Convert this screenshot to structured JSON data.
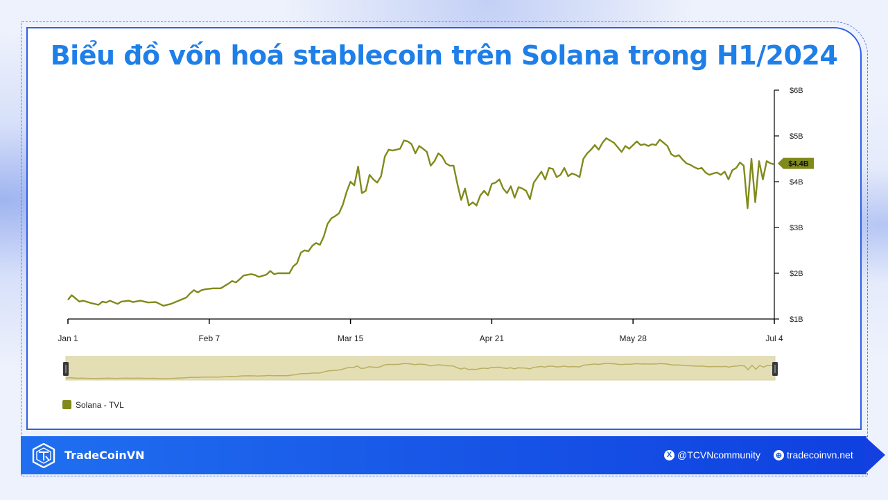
{
  "title": "Biểu đồ vốn hoá stablecoin trên Solana trong H1/2024",
  "chart_data": {
    "type": "line",
    "title": "Biểu đồ vốn hoá stablecoin trên Solana trong H1/2024",
    "x_tick_labels": [
      "Jan 1",
      "Feb 7",
      "Mar 15",
      "Apr 21",
      "May 28",
      "Jul 4"
    ],
    "y_tick_labels": [
      "$6B",
      "$5B",
      "$4B",
      "$3B",
      "$2B",
      "$1B"
    ],
    "ylim": [
      1,
      6
    ],
    "y_unit": "B USD",
    "current_value_label": "$4.4B",
    "current_value": 4.4,
    "legend_position": "bottom-left",
    "grid": false,
    "series": [
      {
        "name": "Solana - TVL",
        "color": "#808a1a",
        "points": [
          [
            "Jan 1",
            1.42
          ],
          [
            "Jan 2",
            1.52
          ],
          [
            "Jan 3",
            1.45
          ],
          [
            "Jan 4",
            1.38
          ],
          [
            "Jan 5",
            1.4
          ],
          [
            "Jan 7",
            1.35
          ],
          [
            "Jan 9",
            1.31
          ],
          [
            "Jan 10",
            1.38
          ],
          [
            "Jan 11",
            1.36
          ],
          [
            "Jan 12",
            1.4
          ],
          [
            "Jan 14",
            1.33
          ],
          [
            "Jan 15",
            1.38
          ],
          [
            "Jan 17",
            1.4
          ],
          [
            "Jan 18",
            1.37
          ],
          [
            "Jan 20",
            1.4
          ],
          [
            "Jan 22",
            1.36
          ],
          [
            "Jan 24",
            1.37
          ],
          [
            "Jan 25",
            1.33
          ],
          [
            "Jan 26",
            1.29
          ],
          [
            "Jan 28",
            1.33
          ],
          [
            "Jan 30",
            1.4
          ],
          [
            "Feb 1",
            1.47
          ],
          [
            "Feb 2",
            1.56
          ],
          [
            "Feb 3",
            1.63
          ],
          [
            "Feb 4",
            1.58
          ],
          [
            "Feb 5",
            1.63
          ],
          [
            "Feb 6",
            1.65
          ],
          [
            "Feb 8",
            1.67
          ],
          [
            "Feb 10",
            1.67
          ],
          [
            "Feb 12",
            1.77
          ],
          [
            "Feb 13",
            1.83
          ],
          [
            "Feb 14",
            1.8
          ],
          [
            "Feb 15",
            1.87
          ],
          [
            "Feb 16",
            1.95
          ],
          [
            "Feb 18",
            1.98
          ],
          [
            "Feb 19",
            1.96
          ],
          [
            "Feb 20",
            1.92
          ],
          [
            "Feb 22",
            1.97
          ],
          [
            "Feb 23",
            2.05
          ],
          [
            "Feb 24",
            1.98
          ],
          [
            "Feb 25",
            2.0
          ],
          [
            "Feb 27",
            2.0
          ],
          [
            "Feb 28",
            2.0
          ],
          [
            "Feb 29",
            2.15
          ],
          [
            "Mar 1",
            2.22
          ],
          [
            "Mar 2",
            2.45
          ],
          [
            "Mar 3",
            2.5
          ],
          [
            "Mar 4",
            2.48
          ],
          [
            "Mar 5",
            2.6
          ],
          [
            "Mar 6",
            2.66
          ],
          [
            "Mar 7",
            2.62
          ],
          [
            "Mar 8",
            2.8
          ],
          [
            "Mar 9",
            3.08
          ],
          [
            "Mar 10",
            3.2
          ],
          [
            "Mar 11",
            3.25
          ],
          [
            "Mar 12",
            3.31
          ],
          [
            "Mar 13",
            3.5
          ],
          [
            "Mar 14",
            3.78
          ],
          [
            "Mar 15",
            4.0
          ],
          [
            "Mar 16",
            3.92
          ],
          [
            "Mar 17",
            4.33
          ],
          [
            "Mar 18",
            3.75
          ],
          [
            "Mar 19",
            3.8
          ],
          [
            "Mar 20",
            4.15
          ],
          [
            "Mar 21",
            4.05
          ],
          [
            "Mar 22",
            3.98
          ],
          [
            "Mar 23",
            4.12
          ],
          [
            "Mar 24",
            4.55
          ],
          [
            "Mar 25",
            4.7
          ],
          [
            "Mar 26",
            4.68
          ],
          [
            "Mar 27",
            4.7
          ],
          [
            "Mar 28",
            4.72
          ],
          [
            "Mar 29",
            4.9
          ],
          [
            "Mar 30",
            4.88
          ],
          [
            "Mar 31",
            4.82
          ],
          [
            "Apr 1",
            4.62
          ],
          [
            "Apr 2",
            4.78
          ],
          [
            "Apr 3",
            4.72
          ],
          [
            "Apr 4",
            4.65
          ],
          [
            "Apr 5",
            4.35
          ],
          [
            "Apr 6",
            4.45
          ],
          [
            "Apr 7",
            4.62
          ],
          [
            "Apr 8",
            4.55
          ],
          [
            "Apr 9",
            4.4
          ],
          [
            "Apr 10",
            4.35
          ],
          [
            "Apr 11",
            4.35
          ],
          [
            "Apr 12",
            3.95
          ],
          [
            "Apr 13",
            3.6
          ],
          [
            "Apr 14",
            3.85
          ],
          [
            "Apr 15",
            3.48
          ],
          [
            "Apr 16",
            3.55
          ],
          [
            "Apr 17",
            3.48
          ],
          [
            "Apr 18",
            3.7
          ],
          [
            "Apr 19",
            3.8
          ],
          [
            "Apr 20",
            3.7
          ],
          [
            "Apr 21",
            3.95
          ],
          [
            "Apr 22",
            3.98
          ],
          [
            "Apr 23",
            4.05
          ],
          [
            "Apr 24",
            3.85
          ],
          [
            "Apr 25",
            3.75
          ],
          [
            "Apr 26",
            3.9
          ],
          [
            "Apr 27",
            3.65
          ],
          [
            "Apr 28",
            3.88
          ],
          [
            "Apr 29",
            3.85
          ],
          [
            "Apr 30",
            3.8
          ],
          [
            "May 1",
            3.62
          ],
          [
            "May 2",
            3.98
          ],
          [
            "May 3",
            4.1
          ],
          [
            "May 4",
            4.22
          ],
          [
            "May 5",
            4.05
          ],
          [
            "May 6",
            4.3
          ],
          [
            "May 7",
            4.28
          ],
          [
            "May 8",
            4.1
          ],
          [
            "May 9",
            4.15
          ],
          [
            "May 10",
            4.3
          ],
          [
            "May 11",
            4.12
          ],
          [
            "May 12",
            4.18
          ],
          [
            "May 13",
            4.15
          ],
          [
            "May 14",
            4.1
          ],
          [
            "May 15",
            4.5
          ],
          [
            "May 16",
            4.62
          ],
          [
            "May 17",
            4.7
          ],
          [
            "May 18",
            4.8
          ],
          [
            "May 19",
            4.7
          ],
          [
            "May 20",
            4.85
          ],
          [
            "May 21",
            4.95
          ],
          [
            "May 22",
            4.9
          ],
          [
            "May 23",
            4.85
          ],
          [
            "May 24",
            4.75
          ],
          [
            "May 25",
            4.65
          ],
          [
            "May 26",
            4.78
          ],
          [
            "May 27",
            4.72
          ],
          [
            "May 28",
            4.8
          ],
          [
            "May 29",
            4.88
          ],
          [
            "May 30",
            4.8
          ],
          [
            "May 31",
            4.82
          ],
          [
            "Jun 1",
            4.78
          ],
          [
            "Jun 2",
            4.82
          ],
          [
            "Jun 3",
            4.8
          ],
          [
            "Jun 4",
            4.92
          ],
          [
            "Jun 5",
            4.85
          ],
          [
            "Jun 6",
            4.78
          ],
          [
            "Jun 7",
            4.6
          ],
          [
            "Jun 8",
            4.55
          ],
          [
            "Jun 9",
            4.58
          ],
          [
            "Jun 10",
            4.48
          ],
          [
            "Jun 11",
            4.4
          ],
          [
            "Jun 12",
            4.37
          ],
          [
            "Jun 13",
            4.32
          ],
          [
            "Jun 14",
            4.28
          ],
          [
            "Jun 15",
            4.3
          ],
          [
            "Jun 16",
            4.2
          ],
          [
            "Jun 17",
            4.15
          ],
          [
            "Jun 18",
            4.18
          ],
          [
            "Jun 19",
            4.2
          ],
          [
            "Jun 20",
            4.15
          ],
          [
            "Jun 21",
            4.22
          ],
          [
            "Jun 22",
            4.05
          ],
          [
            "Jun 23",
            4.25
          ],
          [
            "Jun 24",
            4.3
          ],
          [
            "Jun 25",
            4.42
          ],
          [
            "Jun 26",
            4.35
          ],
          [
            "Jun 27",
            3.42
          ],
          [
            "Jun 28",
            4.5
          ],
          [
            "Jun 29",
            3.55
          ],
          [
            "Jun 30",
            4.45
          ],
          [
            "Jul 1",
            4.05
          ],
          [
            "Jul 2",
            4.45
          ],
          [
            "Jul 3",
            4.4
          ],
          [
            "Jul 4",
            4.38
          ]
        ]
      }
    ]
  },
  "brand": {
    "name": "TradeCoinVN"
  },
  "social": {
    "x_handle": "@TCVNcommunity",
    "website": "tradecoinvn.net"
  }
}
